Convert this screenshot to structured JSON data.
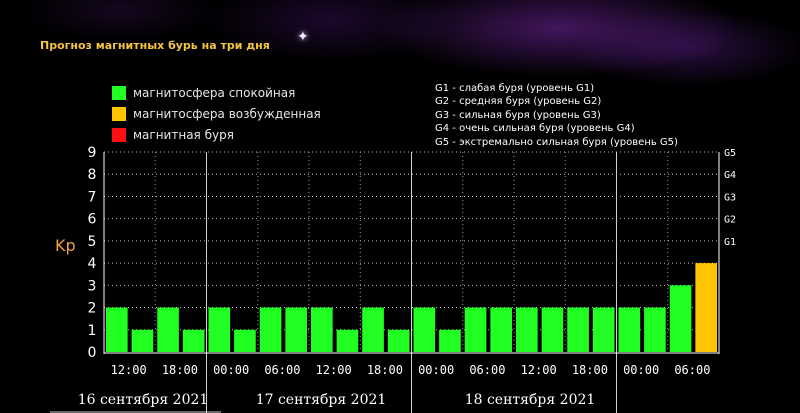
{
  "header": {
    "title": "Прогноз магнитных бурь на три дня"
  },
  "legend": {
    "items": [
      {
        "label": "магнитосфера спокойная",
        "color": "#22ff22"
      },
      {
        "label": "магнитосфера возбужденная",
        "color": "#ffc400"
      },
      {
        "label": "магнитная буря",
        "color": "#ff1010"
      }
    ],
    "storm_levels": [
      "G1 - слабая буря (уровень G1)",
      "G2 - средняя буря (уровень G2)",
      "G3 - сильная буря (уровень G3)",
      "G4 - очень сильная буря (уровень G4)",
      "G5 - экстремально сильная буря (уровень G5)"
    ]
  },
  "chart_data": {
    "type": "bar",
    "ylabel": "Kp",
    "ylim": [
      0,
      9
    ],
    "y_ticks": [
      "0",
      "1",
      "2",
      "3",
      "4",
      "5",
      "6",
      "7",
      "8",
      "9"
    ],
    "right_ticks": [
      {
        "value": 5,
        "label": "G1"
      },
      {
        "value": 6,
        "label": "G2"
      },
      {
        "value": 7,
        "label": "G3"
      },
      {
        "value": 8,
        "label": "G4"
      },
      {
        "value": 9,
        "label": "G5"
      }
    ],
    "x_tick_labels": [
      "12:00",
      "18:00",
      "00:00",
      "06:00",
      "12:00",
      "18:00",
      "00:00",
      "06:00",
      "12:00",
      "18:00",
      "00:00",
      "06:00"
    ],
    "day_labels": [
      "16 сентября 2021",
      "17 сентября 2021",
      "18 сентября 2021"
    ],
    "values": [
      2,
      1,
      2,
      1,
      2,
      1,
      2,
      2,
      2,
      1,
      2,
      1,
      2,
      1,
      2,
      2,
      2,
      2,
      2,
      2,
      2,
      2,
      3,
      4
    ],
    "bar_colors": [
      "#22ff22",
      "#22ff22",
      "#22ff22",
      "#22ff22",
      "#22ff22",
      "#22ff22",
      "#22ff22",
      "#22ff22",
      "#22ff22",
      "#22ff22",
      "#22ff22",
      "#22ff22",
      "#22ff22",
      "#22ff22",
      "#22ff22",
      "#22ff22",
      "#22ff22",
      "#22ff22",
      "#22ff22",
      "#22ff22",
      "#22ff22",
      "#22ff22",
      "#22ff22",
      "#ffc400"
    ],
    "grid": true,
    "legend_position": "top"
  }
}
